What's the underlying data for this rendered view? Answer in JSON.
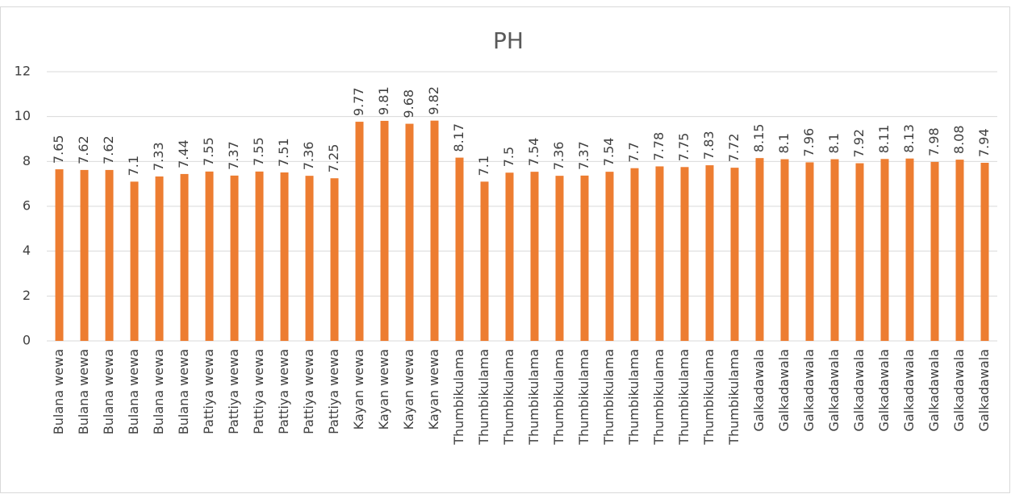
{
  "chart_data": {
    "type": "bar",
    "title": "PH",
    "categories": [
      "Bulana wewa",
      "Bulana wewa",
      "Bulana wewa",
      "Bulana wewa",
      "Bulana wewa",
      "Bulana wewa",
      "Pattiya wewa",
      "Pattiya wewa",
      "Pattiya wewa",
      "Pattiya wewa",
      "Pattiya wewa",
      "Pattiya wewa",
      "Kayan wewa",
      "Kayan wewa",
      "Kayan wewa",
      "Kayan wewa",
      "Thumbikulama",
      "Thumbikulama",
      "Thumbikulama",
      "Thumbikulama",
      "Thumbikulama",
      "Thumbikulama",
      "Thumbikulama",
      "Thumbikulama",
      "Thumbikulama",
      "Thumbikulama",
      "Thumbikulama",
      "Thumbikulama",
      "Galkadawala",
      "Galkadawala",
      "Galkadawala",
      "Galkadawala",
      "Galkadawala",
      "Galkadawala",
      "Galkadawala",
      "Galkadawala",
      "Galkadawala",
      "Galkadawala"
    ],
    "values": [
      7.65,
      7.62,
      7.62,
      7.1,
      7.33,
      7.44,
      7.55,
      7.37,
      7.55,
      7.51,
      7.36,
      7.25,
      9.77,
      9.81,
      9.68,
      9.82,
      8.17,
      7.1,
      7.5,
      7.54,
      7.36,
      7.37,
      7.54,
      7.7,
      7.78,
      7.75,
      7.83,
      7.72,
      8.15,
      8.1,
      7.96,
      8.1,
      7.92,
      8.11,
      8.13,
      7.98,
      8.08,
      7.94
    ],
    "color": "#ed7d31",
    "ylim": [
      0,
      12
    ],
    "yticks": [
      0,
      2,
      4,
      6,
      8,
      10,
      12
    ],
    "grid": true
  }
}
